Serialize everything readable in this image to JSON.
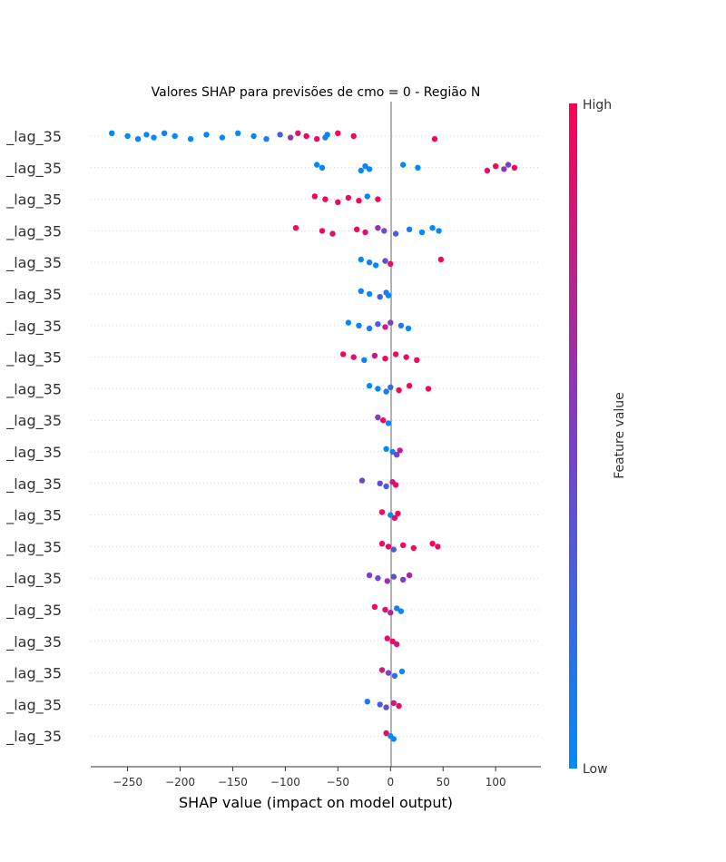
{
  "chart_data": {
    "type": "scatter",
    "title": "Valores SHAP para previsões de cmo = 0 - Região N",
    "xlabel": "SHAP value (impact on model output)",
    "xlim": [
      -285,
      143
    ],
    "xticks": [
      -250,
      -200,
      -150,
      -100,
      -50,
      0,
      50,
      100
    ],
    "xtick_labels": [
      "−250",
      "−200",
      "−150",
      "−100",
      "−50",
      "0",
      "50",
      "100"
    ],
    "colorbar": {
      "label": "Feature value",
      "high_label": "High",
      "low_label": "Low",
      "low_color": "#008bfb",
      "mid_color": "#7c3fc6",
      "high_color": "#ff0052"
    },
    "features": [
      {
        "label": "_lag_35",
        "points": [
          {
            "x": -265,
            "v": 0.0
          },
          {
            "x": -250,
            "v": 0.0
          },
          {
            "x": -240,
            "v": 0.05
          },
          {
            "x": -232,
            "v": 0.0
          },
          {
            "x": -225,
            "v": 0.0
          },
          {
            "x": -215,
            "v": 0.05
          },
          {
            "x": -205,
            "v": 0.0
          },
          {
            "x": -190,
            "v": 0.0
          },
          {
            "x": -175,
            "v": 0.0
          },
          {
            "x": -160,
            "v": 0.0
          },
          {
            "x": -145,
            "v": 0.0
          },
          {
            "x": -130,
            "v": 0.05
          },
          {
            "x": -118,
            "v": 0.1
          },
          {
            "x": -105,
            "v": 0.3
          },
          {
            "x": -95,
            "v": 0.6
          },
          {
            "x": -88,
            "v": 0.85
          },
          {
            "x": -80,
            "v": 0.95
          },
          {
            "x": -70,
            "v": 0.9
          },
          {
            "x": -60,
            "v": 0.05
          },
          {
            "x": -62,
            "v": 0.1
          },
          {
            "x": -50,
            "v": 0.95
          },
          {
            "x": -35,
            "v": 0.95
          },
          {
            "x": 42,
            "v": 0.95
          }
        ]
      },
      {
        "label": "_lag_35",
        "points": [
          {
            "x": -70,
            "v": 0.0
          },
          {
            "x": -65,
            "v": 0.0
          },
          {
            "x": -28,
            "v": 0.0
          },
          {
            "x": -24,
            "v": 0.05
          },
          {
            "x": -20,
            "v": 0.0
          },
          {
            "x": 12,
            "v": 0.0
          },
          {
            "x": 26,
            "v": 0.0
          },
          {
            "x": 92,
            "v": 0.9
          },
          {
            "x": 100,
            "v": 0.95
          },
          {
            "x": 108,
            "v": 0.6
          },
          {
            "x": 112,
            "v": 0.5
          },
          {
            "x": 118,
            "v": 0.95
          }
        ]
      },
      {
        "label": "_lag_35",
        "points": [
          {
            "x": -72,
            "v": 0.95
          },
          {
            "x": -62,
            "v": 1.0
          },
          {
            "x": -50,
            "v": 0.95
          },
          {
            "x": -40,
            "v": 0.9
          },
          {
            "x": -30,
            "v": 0.95
          },
          {
            "x": -22,
            "v": 0.05
          },
          {
            "x": -12,
            "v": 0.95
          }
        ]
      },
      {
        "label": "_lag_35",
        "points": [
          {
            "x": -90,
            "v": 0.95
          },
          {
            "x": -65,
            "v": 0.95
          },
          {
            "x": -55,
            "v": 0.9
          },
          {
            "x": -32,
            "v": 0.95
          },
          {
            "x": -24,
            "v": 0.9
          },
          {
            "x": -12,
            "v": 0.6
          },
          {
            "x": -6,
            "v": 0.45
          },
          {
            "x": 5,
            "v": 0.3
          },
          {
            "x": 18,
            "v": 0.1
          },
          {
            "x": 30,
            "v": 0.0
          },
          {
            "x": 40,
            "v": 0.0
          },
          {
            "x": 46,
            "v": 0.0
          }
        ]
      },
      {
        "label": "_lag_35",
        "points": [
          {
            "x": -28,
            "v": 0.0
          },
          {
            "x": -20,
            "v": 0.05
          },
          {
            "x": -14,
            "v": 0.0
          },
          {
            "x": -5,
            "v": 0.4
          },
          {
            "x": 0,
            "v": 0.9
          },
          {
            "x": 48,
            "v": 0.95
          }
        ]
      },
      {
        "label": "_lag_35",
        "points": [
          {
            "x": -28,
            "v": 0.05
          },
          {
            "x": -20,
            "v": 0.0
          },
          {
            "x": -10,
            "v": 0.3
          },
          {
            "x": -4,
            "v": 0.1
          },
          {
            "x": -2,
            "v": 0.0
          }
        ]
      },
      {
        "label": "_lag_35",
        "points": [
          {
            "x": -40,
            "v": 0.0
          },
          {
            "x": -30,
            "v": 0.05
          },
          {
            "x": -20,
            "v": 0.1
          },
          {
            "x": -12,
            "v": 0.3
          },
          {
            "x": -5,
            "v": 0.75
          },
          {
            "x": 0,
            "v": 0.5
          },
          {
            "x": 10,
            "v": 0.1
          },
          {
            "x": 17,
            "v": 0.0
          }
        ]
      },
      {
        "label": "_lag_35",
        "points": [
          {
            "x": -45,
            "v": 0.95
          },
          {
            "x": -35,
            "v": 0.9
          },
          {
            "x": -25,
            "v": 0.05
          },
          {
            "x": -15,
            "v": 0.8
          },
          {
            "x": -5,
            "v": 0.95
          },
          {
            "x": 5,
            "v": 0.95
          },
          {
            "x": 15,
            "v": 0.9
          },
          {
            "x": 25,
            "v": 0.95
          }
        ]
      },
      {
        "label": "_lag_35",
        "points": [
          {
            "x": -20,
            "v": 0.0
          },
          {
            "x": -12,
            "v": 0.05
          },
          {
            "x": -4,
            "v": 0.1
          },
          {
            "x": 0,
            "v": 0.2
          },
          {
            "x": 8,
            "v": 0.95
          },
          {
            "x": 18,
            "v": 0.95
          },
          {
            "x": 36,
            "v": 0.95
          }
        ]
      },
      {
        "label": "_lag_35",
        "points": [
          {
            "x": -12,
            "v": 0.5
          },
          {
            "x": -7,
            "v": 0.95
          },
          {
            "x": -2,
            "v": 0.05
          }
        ]
      },
      {
        "label": "_lag_35",
        "points": [
          {
            "x": -4,
            "v": 0.0
          },
          {
            "x": 2,
            "v": 0.1
          },
          {
            "x": 6,
            "v": 0.5
          },
          {
            "x": 9,
            "v": 0.75
          }
        ]
      },
      {
        "label": "_lag_35",
        "points": [
          {
            "x": -27,
            "v": 0.45
          },
          {
            "x": -10,
            "v": 0.4
          },
          {
            "x": -4,
            "v": 0.3
          },
          {
            "x": 2,
            "v": 0.8
          },
          {
            "x": 5,
            "v": 0.9
          }
        ]
      },
      {
        "label": "_lag_35",
        "points": [
          {
            "x": -8,
            "v": 0.95
          },
          {
            "x": 0,
            "v": 0.0
          },
          {
            "x": 4,
            "v": 0.9
          },
          {
            "x": 7,
            "v": 0.95
          }
        ]
      },
      {
        "label": "_lag_35",
        "points": [
          {
            "x": -8,
            "v": 0.95
          },
          {
            "x": -2,
            "v": 0.9
          },
          {
            "x": 3,
            "v": 0.3
          },
          {
            "x": 12,
            "v": 0.95
          },
          {
            "x": 22,
            "v": 0.95
          },
          {
            "x": 40,
            "v": 0.95
          },
          {
            "x": 45,
            "v": 0.9
          }
        ]
      },
      {
        "label": "_lag_35",
        "points": [
          {
            "x": -20,
            "v": 0.5
          },
          {
            "x": -12,
            "v": 0.45
          },
          {
            "x": -3,
            "v": 0.6
          },
          {
            "x": 3,
            "v": 0.4
          },
          {
            "x": 12,
            "v": 0.5
          },
          {
            "x": 18,
            "v": 0.7
          }
        ]
      },
      {
        "label": "_lag_35",
        "points": [
          {
            "x": -15,
            "v": 0.95
          },
          {
            "x": -5,
            "v": 0.9
          },
          {
            "x": 0,
            "v": 0.7
          },
          {
            "x": 6,
            "v": 0.1
          },
          {
            "x": 10,
            "v": 0.0
          }
        ]
      },
      {
        "label": "_lag_35",
        "points": [
          {
            "x": -3,
            "v": 0.9
          },
          {
            "x": 2,
            "v": 0.95
          },
          {
            "x": 6,
            "v": 0.8
          }
        ]
      },
      {
        "label": "_lag_35",
        "points": [
          {
            "x": -8,
            "v": 0.8
          },
          {
            "x": -2,
            "v": 0.5
          },
          {
            "x": 4,
            "v": 0.2
          },
          {
            "x": 11,
            "v": 0.0
          }
        ]
      },
      {
        "label": "_lag_35",
        "points": [
          {
            "x": -22,
            "v": 0.1
          },
          {
            "x": -10,
            "v": 0.3
          },
          {
            "x": -4,
            "v": 0.4
          },
          {
            "x": 3,
            "v": 0.8
          },
          {
            "x": 8,
            "v": 0.95
          }
        ]
      },
      {
        "label": "_lag_35",
        "points": [
          {
            "x": -4,
            "v": 0.95
          },
          {
            "x": 0,
            "v": 0.0
          },
          {
            "x": 3,
            "v": 0.05
          }
        ]
      }
    ]
  }
}
